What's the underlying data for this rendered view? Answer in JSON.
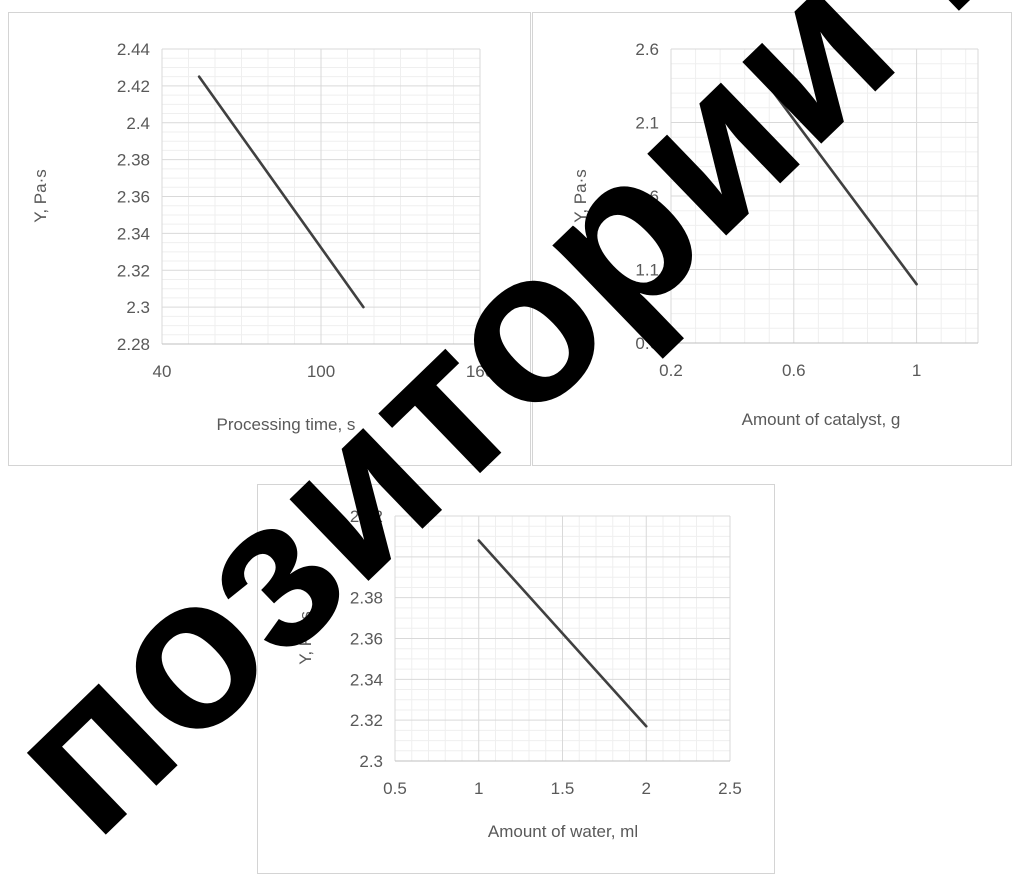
{
  "chart_data": [
    {
      "type": "line",
      "xlabel": "Processing  time,  s",
      "ylabel": "Y, Pa·s",
      "xlim": [
        40,
        160
      ],
      "ylim": [
        2.28,
        2.44
      ],
      "xticks": [
        "40",
        "100",
        "160"
      ],
      "yticks": [
        "2.28",
        "2.3",
        "2.32",
        "2.34",
        "2.36",
        "2.38",
        "2.4",
        "2.42",
        "2.44"
      ],
      "series": [
        {
          "x": [
            54,
            116
          ],
          "y": [
            2.425,
            2.3
          ]
        }
      ]
    },
    {
      "type": "line",
      "xlabel": "Amount of catalyst, g",
      "ylabel": "Y, Pa·s",
      "xlim": [
        0.2,
        1.2
      ],
      "ylim": [
        0.6,
        2.6
      ],
      "xticks": [
        "0.2",
        "0.6",
        "1"
      ],
      "yticks": [
        "0.6",
        "1.1",
        "1.6",
        "2.1",
        "2.6"
      ],
      "series": [
        {
          "x": [
            0.5,
            1.0
          ],
          "y": [
            2.4,
            1.0
          ]
        }
      ]
    },
    {
      "type": "line",
      "xlabel": "Amount of water, ml",
      "ylabel": "Y, Pa·s",
      "xlim": [
        0.5,
        2.5
      ],
      "ylim": [
        2.3,
        2.42
      ],
      "xticks": [
        "0.5",
        "1",
        "1.5",
        "2",
        "2.5"
      ],
      "yticks": [
        "2.3",
        "2.32",
        "2.34",
        "2.36",
        "2.38",
        "2.4",
        "2.42"
      ],
      "series": [
        {
          "x": [
            1.0,
            2.0
          ],
          "y": [
            2.408,
            2.317
          ]
        }
      ]
    }
  ],
  "watermark": {
    "text": "позитории Кар",
    "color": "#000000"
  }
}
